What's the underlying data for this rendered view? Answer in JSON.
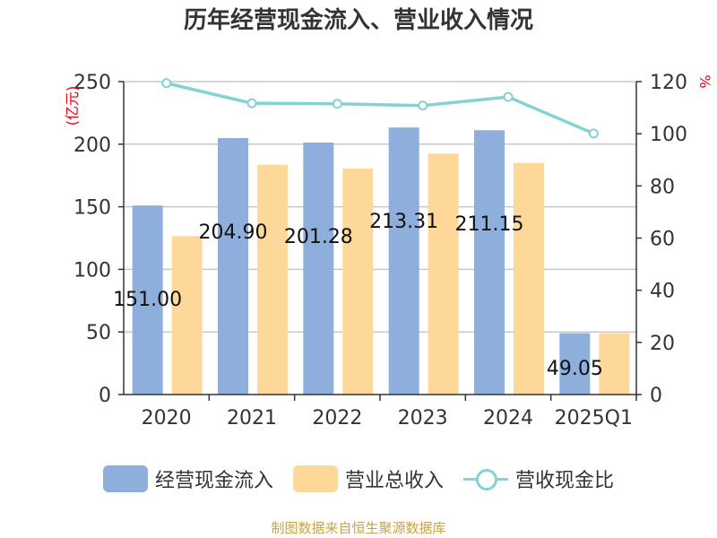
{
  "title": "历年经营现金流入、营业收入情况",
  "source": "制图数据来自恒生聚源数据库",
  "colors": {
    "cash_inflow": "#8eaedc",
    "revenue": "#fed898",
    "ratio": "#86d1d4",
    "unit": "#e60012",
    "grid": "#c8c8c8",
    "axis": "#333333"
  },
  "chart_data": {
    "type": "bar",
    "title": "历年经营现金流入、营业收入情况",
    "categories": [
      "2020",
      "2021",
      "2022",
      "2023",
      "2024",
      "2025Q1"
    ],
    "left_axis": {
      "unit": "(亿元)",
      "ylim": [
        0,
        250
      ],
      "ticks": [
        0,
        50,
        100,
        150,
        200,
        250
      ]
    },
    "right_axis": {
      "unit": "%",
      "ylim": [
        0,
        120
      ],
      "ticks": [
        0,
        20,
        40,
        60,
        80,
        100,
        120
      ]
    },
    "series": [
      {
        "name": "经营现金流入",
        "type": "bar",
        "axis": "left",
        "values": [
          151.0,
          204.9,
          201.28,
          213.31,
          211.15,
          49.05
        ],
        "labels": [
          "151.00",
          "204.90",
          "201.28",
          "213.31",
          "211.15",
          "49.05"
        ]
      },
      {
        "name": "营业总收入",
        "type": "bar",
        "axis": "left",
        "values": [
          126.5,
          183.5,
          180.5,
          192.5,
          185.0,
          49.0
        ]
      },
      {
        "name": "营收现金比",
        "type": "line",
        "axis": "right",
        "values": [
          119.4,
          111.7,
          111.5,
          110.8,
          114.1,
          100.1
        ]
      }
    ],
    "grid": true,
    "legend": "bottom-center"
  }
}
